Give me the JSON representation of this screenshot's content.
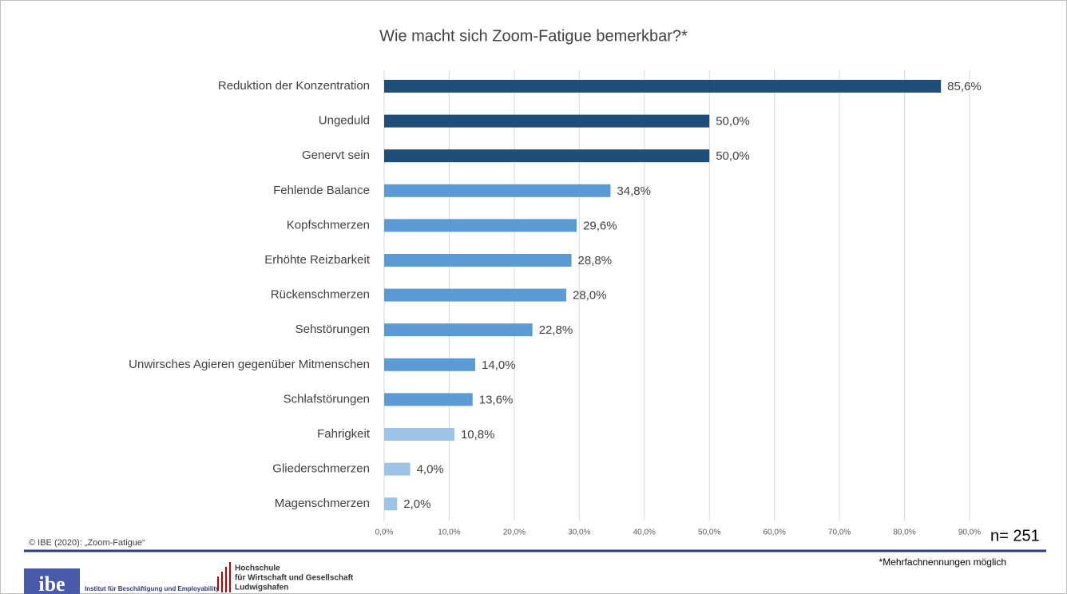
{
  "chart_data": {
    "type": "bar",
    "orientation": "horizontal",
    "title": "Wie macht sich Zoom-Fatigue bemerkbar?*",
    "categories": [
      "Reduktion der Konzentration",
      "Ungeduld",
      "Genervt sein",
      "Fehlende Balance",
      "Kopfschmerzen",
      "Erhöhte Reizbarkeit",
      "Rückenschmerzen",
      "Sehstörungen",
      "Unwirsches Agieren gegenüber Mitmenschen",
      "Schlafstörungen",
      "Fahrigkeit",
      "Gliederschmerzen",
      "Magenschmerzen"
    ],
    "values": [
      85.6,
      50.0,
      50.0,
      34.8,
      29.6,
      28.8,
      28.0,
      22.8,
      14.0,
      13.6,
      10.8,
      4.0,
      2.0
    ],
    "value_labels": [
      "85,6%",
      "50,0%",
      "50,0%",
      "34,8%",
      "29,6%",
      "28,8%",
      "28,0%",
      "22,8%",
      "14,0%",
      "13,6%",
      "10,8%",
      "4,0%",
      "2,0%"
    ],
    "colors": [
      "#1f4e79",
      "#1f4e79",
      "#1f4e79",
      "#5b9bd5",
      "#5b9bd5",
      "#5b9bd5",
      "#5b9bd5",
      "#5b9bd5",
      "#5b9bd5",
      "#5b9bd5",
      "#9dc3e6",
      "#9dc3e6",
      "#9dc3e6"
    ],
    "xlim": [
      0,
      90
    ],
    "xticks": [
      {
        "value": 0,
        "label": "0,0%"
      },
      {
        "value": 10,
        "label": "10,0%"
      },
      {
        "value": 20,
        "label": "20,0%"
      },
      {
        "value": 30,
        "label": "30,0%"
      },
      {
        "value": 40,
        "label": "40,0%"
      },
      {
        "value": 50,
        "label": "50,0%"
      },
      {
        "value": 60,
        "label": "60,0%"
      },
      {
        "value": 70,
        "label": "70,0%"
      },
      {
        "value": 80,
        "label": "80,0%"
      },
      {
        "value": 90,
        "label": "90,0%"
      }
    ],
    "grid": true
  },
  "footer": {
    "source": "© IBE (2020): „Zoom-Fatigue“",
    "sample": "n= 251",
    "note": "*Mehrfachnennungen möglich",
    "logo_ibe": "ibe",
    "logo_ibe_name": "Institut für Beschäftigung und Employability",
    "logo_hs": [
      "Hochschule",
      "für Wirtschaft und Gesellschaft",
      "Ludwigshafen"
    ]
  }
}
